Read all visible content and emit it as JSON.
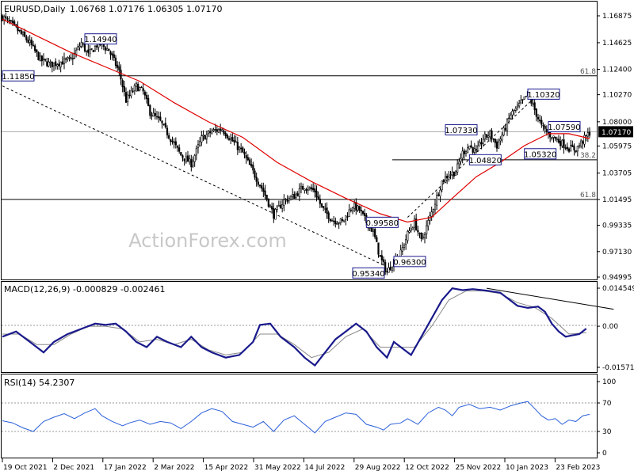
{
  "header": {
    "symbol": "EURUSD,Daily",
    "ohlc": "1.06768 1.07176 1.06305 1.07170"
  },
  "watermark": "ActionForex.com",
  "colors": {
    "candle": "#000000",
    "sma": "#e00000",
    "label_border": "#1a1a8c",
    "macd_line": "#1a1a8c",
    "macd_signal": "#888888",
    "rsi_line": "#2b5fd9",
    "current_price_bg": "#000000"
  },
  "chart_data": [
    {
      "type": "candlestick",
      "title": "EURUSD,Daily",
      "x_labels": [
        "19 Oct 2021",
        "2 Dec 2021",
        "17 Jan 2022",
        "2 Mar 2022",
        "15 Apr 2022",
        "31 May 2022",
        "14 Jul 2022",
        "29 Aug 2022",
        "12 Oct 2022",
        "25 Nov 2022",
        "10 Jan 2023",
        "23 Feb 2023"
      ],
      "y_ticks": [
        "1.16875",
        "1.14625",
        "1.12400",
        "1.10270",
        "1.08000",
        "1.05975",
        "1.03705",
        "1.01495",
        "0.99335",
        "0.97130",
        "0.94995"
      ],
      "ylim": [
        0.94995,
        1.16875
      ],
      "current_price": "1.07170",
      "price_path": [
        [
          0,
          1.168
        ],
        [
          8,
          1.158
        ],
        [
          16,
          1.146
        ],
        [
          22,
          1.132
        ],
        [
          28,
          1.128
        ],
        [
          34,
          1.13
        ],
        [
          40,
          1.132
        ],
        [
          46,
          1.146
        ],
        [
          50,
          1.136
        ],
        [
          56,
          1.146
        ],
        [
          62,
          1.14
        ],
        [
          68,
          1.122
        ],
        [
          72,
          1.098
        ],
        [
          78,
          1.11
        ],
        [
          82,
          1.105
        ],
        [
          86,
          1.088
        ],
        [
          92,
          1.08
        ],
        [
          98,
          1.066
        ],
        [
          104,
          1.052
        ],
        [
          110,
          1.045
        ],
        [
          116,
          1.066
        ],
        [
          122,
          1.072
        ],
        [
          128,
          1.074
        ],
        [
          134,
          1.064
        ],
        [
          140,
          1.054
        ],
        [
          146,
          1.038
        ],
        [
          152,
          1.022
        ],
        [
          158,
          1.002
        ],
        [
          164,
          1.014
        ],
        [
          170,
          1.018
        ],
        [
          176,
          1.026
        ],
        [
          182,
          1.022
        ],
        [
          186,
          1.008
        ],
        [
          192,
          0.998
        ],
        [
          198,
          0.996
        ],
        [
          204,
          1.01
        ],
        [
          208,
          1.006
        ],
        [
          212,
          0.996
        ],
        [
          216,
          0.988
        ],
        [
          220,
          0.966
        ],
        [
          224,
          0.954
        ],
        [
          228,
          0.964
        ],
        [
          232,
          0.97
        ],
        [
          236,
          0.986
        ],
        [
          240,
          0.996
        ],
        [
          244,
          0.98
        ],
        [
          250,
          1.004
        ],
        [
          256,
          1.03
        ],
        [
          260,
          1.036
        ],
        [
          264,
          1.038
        ],
        [
          268,
          1.054
        ],
        [
          272,
          1.06
        ],
        [
          276,
          1.054
        ],
        [
          280,
          1.066
        ],
        [
          284,
          1.07
        ],
        [
          288,
          1.06
        ],
        [
          292,
          1.072
        ],
        [
          296,
          1.086
        ],
        [
          300,
          1.092
        ],
        [
          304,
          1.099
        ],
        [
          306,
          1.1032
        ],
        [
          310,
          1.09
        ],
        [
          314,
          1.076
        ],
        [
          318,
          1.07
        ],
        [
          322,
          1.066
        ],
        [
          326,
          1.062
        ],
        [
          330,
          1.058
        ],
        [
          334,
          1.057
        ],
        [
          338,
          1.064
        ],
        [
          342,
          1.071
        ]
      ],
      "sma_path": [
        [
          0,
          1.166
        ],
        [
          20,
          1.152
        ],
        [
          40,
          1.138
        ],
        [
          60,
          1.126
        ],
        [
          80,
          1.114
        ],
        [
          100,
          1.096
        ],
        [
          120,
          1.08
        ],
        [
          140,
          1.067
        ],
        [
          160,
          1.046
        ],
        [
          180,
          1.03
        ],
        [
          200,
          1.016
        ],
        [
          220,
          1.003
        ],
        [
          236,
          0.996
        ],
        [
          250,
          1.0
        ],
        [
          262,
          1.016
        ],
        [
          276,
          1.034
        ],
        [
          290,
          1.046
        ],
        [
          304,
          1.06
        ],
        [
          318,
          1.07
        ],
        [
          330,
          1.07
        ],
        [
          342,
          1.066
        ]
      ],
      "annotations": [
        {
          "text": "1.14940",
          "price": 1.1494,
          "bar": 48
        },
        {
          "text": "1.11850",
          "price": 1.1185,
          "bar": 0
        },
        {
          "text": "1.10320",
          "price": 1.1032,
          "bar": 306
        },
        {
          "text": "1.07330",
          "price": 1.0733,
          "bar": 258
        },
        {
          "text": "1.07590",
          "price": 1.0759,
          "bar": 318
        },
        {
          "text": "1.04820",
          "price": 1.0482,
          "bar": 272
        },
        {
          "text": "1.05320",
          "price": 1.0532,
          "bar": 304
        },
        {
          "text": "0.99580",
          "price": 0.9958,
          "bar": 212
        },
        {
          "text": "0.96300",
          "price": 0.963,
          "bar": 228
        },
        {
          "text": "0.95340",
          "price": 0.9534,
          "bar": 204
        }
      ],
      "levels": [
        {
          "price": 1.1185,
          "label": "61.8"
        },
        {
          "price": 1.0482,
          "label": "38.2"
        },
        {
          "price": 1.015,
          "label": "61.8"
        },
        {
          "price": 1.0717,
          "label": ""
        }
      ],
      "trendlines": [
        {
          "from": [
            0,
            1.11
          ],
          "to": [
            222,
            0.96
          ],
          "dashed": true
        },
        {
          "from": [
            236,
            1.0
          ],
          "to": [
            312,
            1.103
          ],
          "dashed": true
        }
      ]
    },
    {
      "type": "line",
      "title": "MACD(12,26,9) -0.000829 -0.002461",
      "y_ticks": [
        "0.014549",
        "0.00",
        "-0.015712"
      ],
      "ylim": [
        -0.015712,
        0.014549
      ],
      "macd": [
        [
          0,
          -0.004
        ],
        [
          8,
          -0.002
        ],
        [
          16,
          -0.006
        ],
        [
          24,
          -0.01
        ],
        [
          30,
          -0.006
        ],
        [
          38,
          -0.003
        ],
        [
          46,
          -0.001
        ],
        [
          54,
          0.001
        ],
        [
          60,
          0.0005
        ],
        [
          66,
          0.001
        ],
        [
          72,
          -0.002
        ],
        [
          78,
          -0.006
        ],
        [
          84,
          -0.008
        ],
        [
          90,
          -0.004
        ],
        [
          96,
          -0.006
        ],
        [
          104,
          -0.008
        ],
        [
          110,
          -0.004
        ],
        [
          116,
          -0.008
        ],
        [
          122,
          -0.01
        ],
        [
          130,
          -0.012
        ],
        [
          138,
          -0.011
        ],
        [
          146,
          -0.006
        ],
        [
          150,
          0.0005
        ],
        [
          156,
          0.001
        ],
        [
          162,
          -0.004
        ],
        [
          170,
          -0.008
        ],
        [
          176,
          -0.012
        ],
        [
          182,
          -0.015
        ],
        [
          188,
          -0.01
        ],
        [
          194,
          -0.005
        ],
        [
          200,
          -0.002
        ],
        [
          206,
          0.001
        ],
        [
          212,
          -0.002
        ],
        [
          218,
          -0.008
        ],
        [
          224,
          -0.012
        ],
        [
          228,
          -0.006
        ],
        [
          234,
          -0.009
        ],
        [
          238,
          -0.011
        ],
        [
          244,
          -0.004
        ],
        [
          250,
          0.003
        ],
        [
          256,
          0.01
        ],
        [
          262,
          0.0145
        ],
        [
          268,
          0.0138
        ],
        [
          274,
          0.0142
        ],
        [
          282,
          0.0136
        ],
        [
          290,
          0.0128
        ],
        [
          300,
          0.0078
        ],
        [
          306,
          0.007
        ],
        [
          312,
          0.0075
        ],
        [
          316,
          0.0055
        ],
        [
          320,
          0.001
        ],
        [
          324,
          -0.002
        ],
        [
          328,
          -0.004
        ],
        [
          332,
          -0.0035
        ],
        [
          336,
          -0.003
        ],
        [
          340,
          -0.0009
        ]
      ],
      "signal": [
        [
          0,
          -0.003
        ],
        [
          10,
          -0.003
        ],
        [
          20,
          -0.007
        ],
        [
          30,
          -0.007
        ],
        [
          40,
          -0.003
        ],
        [
          50,
          0.0
        ],
        [
          60,
          0.0
        ],
        [
          70,
          -0.001
        ],
        [
          80,
          -0.006
        ],
        [
          90,
          -0.005
        ],
        [
          100,
          -0.007
        ],
        [
          110,
          -0.005
        ],
        [
          120,
          -0.009
        ],
        [
          130,
          -0.011
        ],
        [
          140,
          -0.01
        ],
        [
          150,
          -0.003
        ],
        [
          160,
          -0.003
        ],
        [
          170,
          -0.007
        ],
        [
          180,
          -0.012
        ],
        [
          190,
          -0.01
        ],
        [
          200,
          -0.004
        ],
        [
          210,
          -0.001
        ],
        [
          220,
          -0.008
        ],
        [
          230,
          -0.008
        ],
        [
          240,
          -0.008
        ],
        [
          250,
          0.0
        ],
        [
          260,
          0.01
        ],
        [
          270,
          0.0135
        ],
        [
          280,
          0.0135
        ],
        [
          290,
          0.0125
        ],
        [
          300,
          0.009
        ],
        [
          310,
          0.0072
        ],
        [
          320,
          0.003
        ],
        [
          330,
          -0.003
        ],
        [
          340,
          -0.0025
        ]
      ],
      "trendline": {
        "from": [
          282,
          0.0145
        ],
        "to": [
          356,
          0.0065
        ]
      }
    },
    {
      "type": "line",
      "title": "RSI(14) 54.2307",
      "y_ticks": [
        "100",
        "70",
        "30",
        "0"
      ],
      "ylim": [
        0,
        100
      ],
      "levels": [
        70,
        30
      ],
      "values": [
        [
          0,
          45
        ],
        [
          6,
          42
        ],
        [
          12,
          35
        ],
        [
          18,
          30
        ],
        [
          24,
          44
        ],
        [
          30,
          50
        ],
        [
          36,
          55
        ],
        [
          42,
          48
        ],
        [
          48,
          56
        ],
        [
          54,
          62
        ],
        [
          58,
          52
        ],
        [
          64,
          44
        ],
        [
          70,
          38
        ],
        [
          74,
          42
        ],
        [
          80,
          46
        ],
        [
          86,
          40
        ],
        [
          92,
          44
        ],
        [
          98,
          42
        ],
        [
          104,
          34
        ],
        [
          110,
          44
        ],
        [
          116,
          56
        ],
        [
          122,
          62
        ],
        [
          128,
          58
        ],
        [
          134,
          44
        ],
        [
          140,
          40
        ],
        [
          146,
          36
        ],
        [
          152,
          44
        ],
        [
          158,
          30
        ],
        [
          164,
          46
        ],
        [
          170,
          52
        ],
        [
          176,
          40
        ],
        [
          182,
          28
        ],
        [
          188,
          44
        ],
        [
          194,
          50
        ],
        [
          200,
          56
        ],
        [
          206,
          54
        ],
        [
          212,
          40
        ],
        [
          218,
          36
        ],
        [
          222,
          32
        ],
        [
          226,
          40
        ],
        [
          232,
          42
        ],
        [
          236,
          48
        ],
        [
          242,
          40
        ],
        [
          248,
          56
        ],
        [
          254,
          64
        ],
        [
          258,
          60
        ],
        [
          262,
          52
        ],
        [
          266,
          64
        ],
        [
          272,
          68
        ],
        [
          278,
          62
        ],
        [
          284,
          64
        ],
        [
          290,
          60
        ],
        [
          296,
          66
        ],
        [
          302,
          70
        ],
        [
          306,
          72
        ],
        [
          310,
          62
        ],
        [
          314,
          52
        ],
        [
          318,
          46
        ],
        [
          322,
          48
        ],
        [
          326,
          40
        ],
        [
          330,
          46
        ],
        [
          334,
          44
        ],
        [
          338,
          52
        ],
        [
          342,
          54
        ]
      ]
    }
  ]
}
